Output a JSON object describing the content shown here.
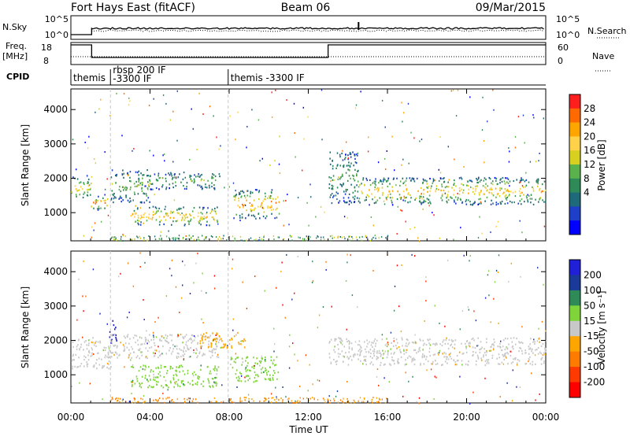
{
  "header": {
    "station": "Fort Hays East (fitACF)",
    "beam": "Beam 06",
    "date": "09/Mar/2015"
  },
  "strip": {
    "nsky_label": "N.Sky",
    "nsky_ticks": [
      "10^5",
      "10^0"
    ],
    "nsearch_label": "N.Search",
    "nsearch_ticks": [
      "10^5",
      "10^0"
    ],
    "freq_label_1": "Freq.",
    "freq_label_2": "[MHz]",
    "freq_ticks": [
      "18",
      "8"
    ],
    "nave_label": "Nave",
    "nave_ticks": [
      "60",
      "0"
    ],
    "cpid_label": "CPID",
    "cpid_segments": [
      {
        "label": "themis",
        "line2": "",
        "start_hr": 0.0
      },
      {
        "label": "rbsp 200 IF",
        "line2": "-3300 IF",
        "start_hr": 2.0
      },
      {
        "label": "themis -3300 IF",
        "line2": "",
        "start_hr": 7.95
      }
    ]
  },
  "colorbars": {
    "power": {
      "label": "Power [dB]",
      "ticks": [
        "28",
        "24",
        "20",
        "16",
        "12",
        "8",
        "4"
      ],
      "colors": [
        "#ff1e1e",
        "#ff6a00",
        "#ffa500",
        "#ffd24a",
        "#d8d020",
        "#5ab24c",
        "#2e8b57",
        "#1f6a7a",
        "#1e40c8",
        "#0000ff"
      ]
    },
    "velocity": {
      "label": "Velocity [m s⁻¹]",
      "ticks": [
        "200",
        "100",
        "50",
        "15",
        "-15",
        "-50",
        "-100",
        "-200"
      ],
      "colors": [
        "#2020d8",
        "#1a3a9a",
        "#2e8b57",
        "#7fd43a",
        "#c8c8c8",
        "#ffa500",
        "#ff7a00",
        "#ff3a00",
        "#ff0000"
      ]
    }
  },
  "axes": {
    "ylabel": "Slant Range [km]",
    "y_ticks": [
      "4000",
      "3000",
      "2000",
      "1000"
    ],
    "x_ticks": [
      "00:00",
      "04:00",
      "08:00",
      "12:00",
      "16:00",
      "20:00",
      "00:00"
    ],
    "xlabel": "Time UT"
  },
  "chart_data": [
    {
      "type": "heatmap",
      "name": "power",
      "xlabel": "Time UT",
      "ylabel": "Slant Range [km]",
      "xlim_hr": [
        0,
        24
      ],
      "ylim_km": [
        180,
        4600
      ],
      "echo_bands": [
        {
          "t0": 0.0,
          "t1": 1.0,
          "r0": 1400,
          "r1": 2100,
          "level": 0.55
        },
        {
          "t0": 1.0,
          "t1": 2.0,
          "r0": 1100,
          "r1": 1500,
          "level": 0.75
        },
        {
          "t0": 2.0,
          "t1": 4.0,
          "r0": 1300,
          "r1": 2300,
          "level": 0.35
        },
        {
          "t0": 4.0,
          "t1": 7.5,
          "r0": 1700,
          "r1": 2200,
          "level": 0.3
        },
        {
          "t0": 3.0,
          "t1": 7.5,
          "r0": 650,
          "r1": 1200,
          "level": 0.65
        },
        {
          "t0": 8.2,
          "t1": 10.5,
          "r0": 850,
          "r1": 1700,
          "level": 0.7
        },
        {
          "t0": 13.0,
          "t1": 14.5,
          "r0": 1300,
          "r1": 2800,
          "level": 0.3
        },
        {
          "t0": 14.5,
          "t1": 24.0,
          "r0": 1250,
          "r1": 2050,
          "level": 0.6
        }
      ]
    },
    {
      "type": "heatmap",
      "name": "velocity",
      "xlabel": "Time UT",
      "ylabel": "Slant Range [km]",
      "xlim_hr": [
        0,
        24
      ],
      "ylim_km": [
        180,
        4600
      ],
      "echo_bands": [
        {
          "t0": 0.0,
          "t1": 2.0,
          "r0": 1200,
          "r1": 2100,
          "vel": 0
        },
        {
          "t0": 1.9,
          "t1": 2.3,
          "r0": 2000,
          "r1": 2600,
          "vel": 200
        },
        {
          "t0": 2.0,
          "t1": 7.5,
          "r0": 1500,
          "r1": 2200,
          "vel": 0
        },
        {
          "t0": 6.5,
          "t1": 8.8,
          "r0": 1800,
          "r1": 2250,
          "vel": -50
        },
        {
          "t0": 3.0,
          "t1": 7.5,
          "r0": 650,
          "r1": 1300,
          "vel": 50
        },
        {
          "t0": 8.0,
          "t1": 10.5,
          "r0": 800,
          "r1": 1550,
          "vel": 50
        },
        {
          "t0": 13.0,
          "t1": 24.0,
          "r0": 1300,
          "r1": 2100,
          "vel": 0
        }
      ]
    }
  ]
}
